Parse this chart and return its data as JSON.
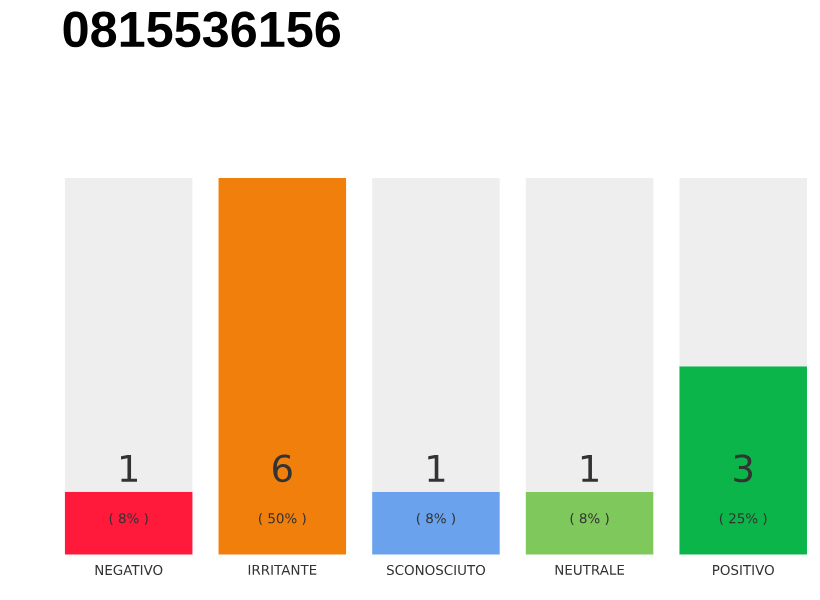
{
  "chart_data": {
    "type": "bar",
    "title": "0815536156",
    "categories": [
      "NEGATIVO",
      "IRRITANTE",
      "SCONOSCIUTO",
      "NEUTRALE",
      "POSITIVO"
    ],
    "stacked": true,
    "annotations": [
      "( 8% )",
      "( 50% )",
      "( 8% )",
      "( 8% )",
      "( 25% )"
    ],
    "series": [
      {
        "colors": [
          "#ff1a3c",
          "#f07f0c",
          "#6aa2ee",
          "#7ec85c",
          "#0bb54a"
        ],
        "values": [
          1,
          6,
          1,
          1,
          3
        ],
        "value_labels": [
          "1",
          "6",
          "1",
          "1",
          "3"
        ]
      },
      {
        "color": "#eeeeee",
        "values": [
          5,
          0,
          5,
          5,
          3
        ]
      }
    ]
  }
}
